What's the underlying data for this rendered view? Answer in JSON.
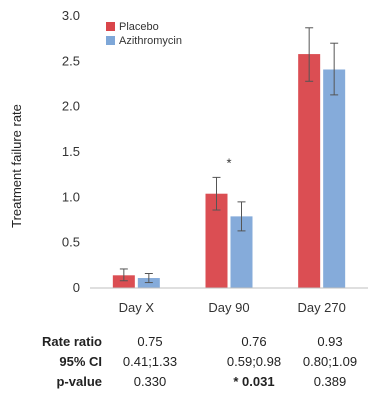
{
  "chart_data": {
    "type": "bar",
    "categories": [
      "Day X",
      "Day 90",
      "Day 270"
    ],
    "series": [
      {
        "name": "Placebo",
        "color": "#d9454a",
        "values": [
          0.14,
          1.04,
          2.58
        ],
        "err_low": [
          0.08,
          0.86,
          2.28
        ],
        "err_high": [
          0.21,
          1.22,
          2.87
        ]
      },
      {
        "name": "Azithromycin",
        "color": "#7ea7d8",
        "values": [
          0.11,
          0.79,
          2.41
        ],
        "err_low": [
          0.06,
          0.63,
          2.13
        ],
        "err_high": [
          0.16,
          0.95,
          2.7
        ]
      }
    ],
    "ylabel": "Treatment failure rate",
    "ylim": [
      0,
      3.0
    ],
    "yticks": [
      "0",
      "0.5",
      "1.0",
      "1.5",
      "2.0",
      "2.5",
      "3.0"
    ],
    "annotations": [
      {
        "category": "Day 90",
        "text": "*"
      }
    ],
    "legend_position": "top-left",
    "grid": false
  },
  "stats_table": {
    "rows": [
      {
        "label": "Rate ratio",
        "values": [
          "0.75",
          "0.76",
          "0.93"
        ]
      },
      {
        "label": "95% CI",
        "values": [
          "0.41;1.33",
          "0.59;0.98",
          "0.80;1.09"
        ]
      },
      {
        "label": "p-value",
        "values": [
          "0.330",
          "* 0.031",
          "0.389"
        ],
        "bold_index": 1
      }
    ]
  }
}
